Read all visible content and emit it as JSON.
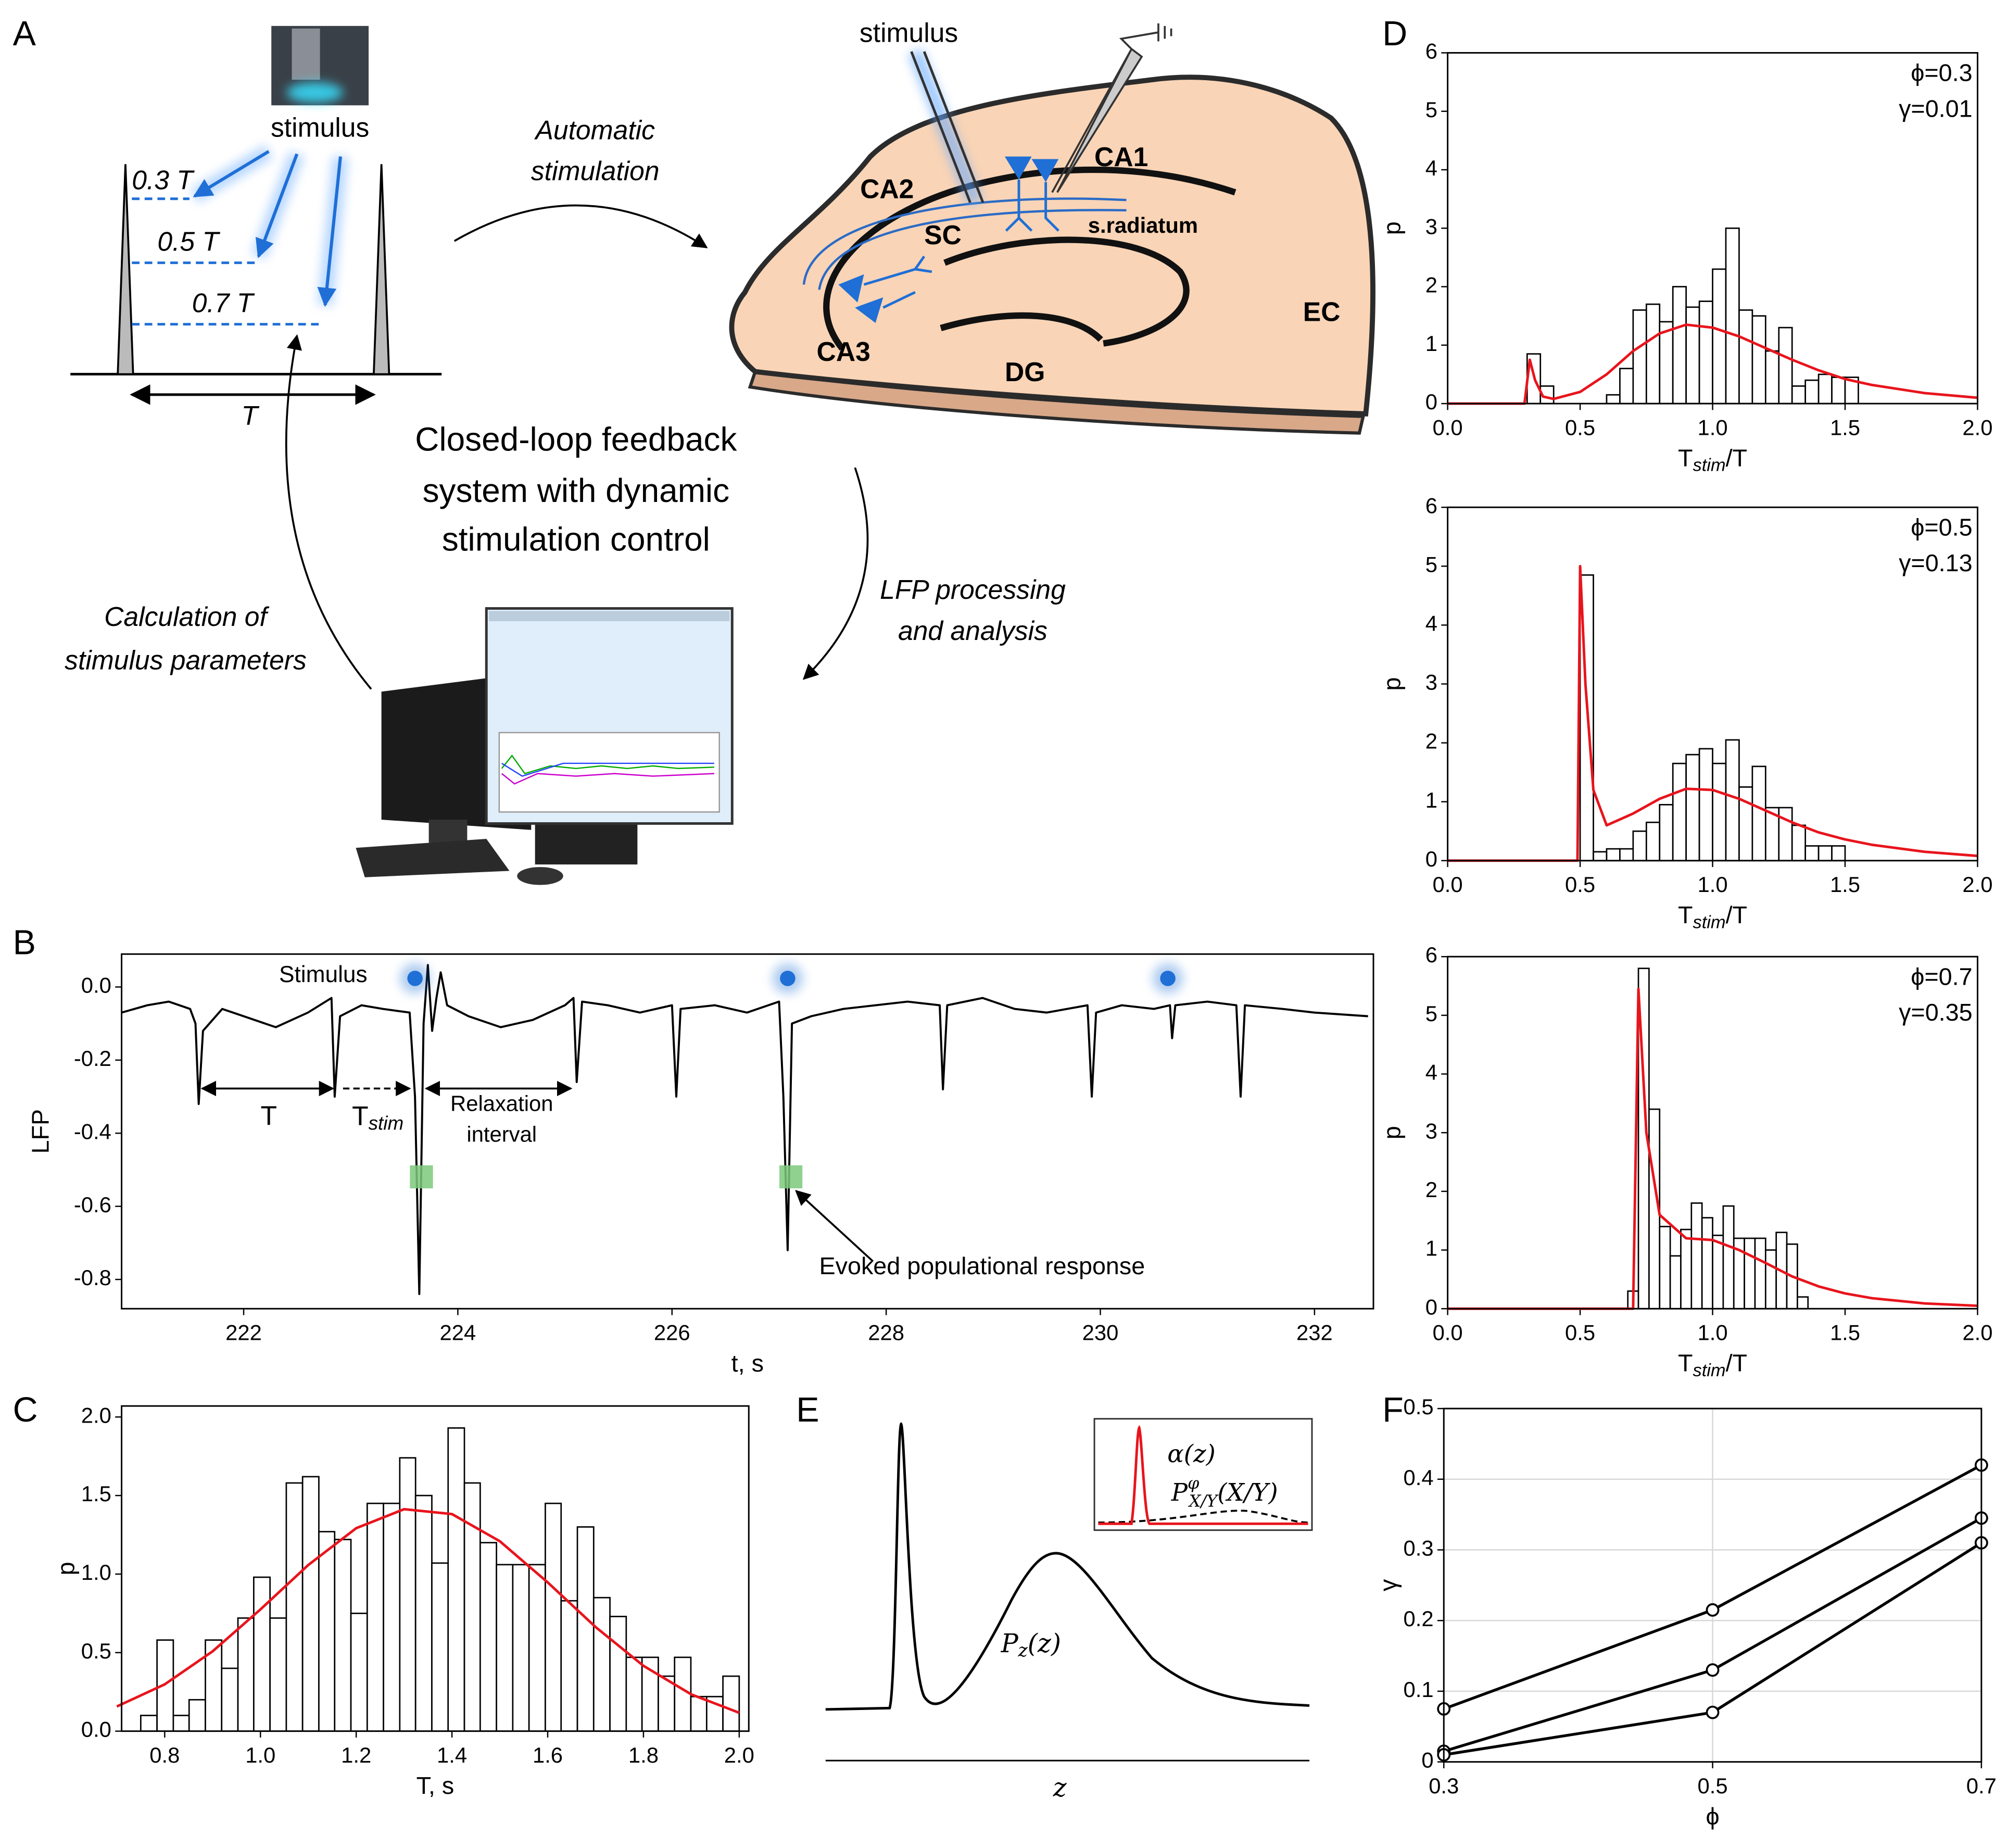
{
  "panel_labels": [
    "A",
    "B",
    "C",
    "D",
    "E",
    "F"
  ],
  "panel_a": {
    "stimulus_top": "stimulus",
    "phase_labels": [
      "0.3 T",
      "0.5 T",
      "0.7 T"
    ],
    "period": "T",
    "top_arrow": [
      "Automatic",
      "stimulation"
    ],
    "center_title": [
      "Closed-loop feedback",
      "system with dynamic",
      "stimulation control"
    ],
    "right_arrow": [
      "LFP processing",
      "and analysis"
    ],
    "left_arrow": [
      "Calculation of",
      "stimulus parameters"
    ],
    "brain": {
      "stimulus": "stimulus",
      "regions": [
        "CA1",
        "CA2",
        "CA3",
        "SC",
        "DG",
        "EC"
      ],
      "layer": "s.radiatum"
    }
  },
  "panel_e": {
    "main_curve": [
      "P",
      "z",
      "(z)"
    ],
    "inset_red": "α(z)",
    "inset_dashed": [
      "P",
      "φ",
      "X/Y",
      "(X/Y)"
    ],
    "xlabel": "z"
  },
  "chart_data": [
    {
      "type": "line",
      "xlabel": "t, s",
      "ylabel": "LFP",
      "xlim": [
        220.86,
        232.55
      ],
      "ylim": [
        -0.88,
        0.09
      ],
      "xticks": [
        222,
        224,
        226,
        228,
        230,
        232
      ],
      "yticks": [
        {
          "value": 0,
          "label": "0.0"
        },
        -0.2,
        -0.4,
        -0.6,
        -0.8
      ],
      "x": [
        220.86,
        221.1,
        221.3,
        221.5,
        221.55,
        221.58,
        221.62,
        221.8,
        222.0,
        222.3,
        222.6,
        222.82,
        222.85,
        222.9,
        223.1,
        223.3,
        223.55,
        223.6,
        223.64,
        223.68,
        223.72,
        223.76,
        223.8,
        223.84,
        223.9,
        224.1,
        224.4,
        224.7,
        225.0,
        225.08,
        225.11,
        225.16,
        225.4,
        225.7,
        226.0,
        226.04,
        226.08,
        226.4,
        226.7,
        227.0,
        227.04,
        227.08,
        227.12,
        227.3,
        227.6,
        227.9,
        228.2,
        228.5,
        228.53,
        228.57,
        228.9,
        229.2,
        229.5,
        229.88,
        229.92,
        229.96,
        230.2,
        230.5,
        230.65,
        230.67,
        230.7,
        231.0,
        231.27,
        231.31,
        231.35,
        231.7,
        232.0,
        232.5
      ],
      "series": [
        {
          "color": "#000000",
          "values": [
            -0.07,
            -0.05,
            -0.04,
            -0.06,
            -0.1,
            -0.32,
            -0.12,
            -0.06,
            -0.08,
            -0.11,
            -0.07,
            -0.03,
            -0.3,
            -0.08,
            -0.05,
            -0.06,
            -0.07,
            -0.3,
            -0.84,
            -0.1,
            0.06,
            -0.12,
            -0.03,
            0.04,
            -0.05,
            -0.08,
            -0.11,
            -0.09,
            -0.05,
            -0.03,
            -0.26,
            -0.04,
            -0.05,
            -0.07,
            -0.05,
            -0.3,
            -0.06,
            -0.05,
            -0.07,
            -0.04,
            -0.3,
            -0.72,
            -0.1,
            -0.08,
            -0.06,
            -0.05,
            -0.04,
            -0.05,
            -0.28,
            -0.05,
            -0.03,
            -0.06,
            -0.07,
            -0.05,
            -0.3,
            -0.07,
            -0.05,
            -0.06,
            -0.05,
            -0.14,
            -0.05,
            -0.04,
            -0.05,
            -0.3,
            -0.05,
            -0.06,
            -0.07,
            -0.08
          ]
        }
      ],
      "stimulus_times": [
        223.6,
        227.08,
        230.63
      ],
      "stimulus_color": "#1f6fd6",
      "evoked_times": [
        223.66,
        227.11
      ],
      "evoked_color": "#7dc97d",
      "annotations": {
        "stimulus": "Stimulus",
        "period": "T",
        "stim_interval": [
          "T",
          "stim"
        ],
        "relaxation": [
          "Relaxation",
          "interval"
        ],
        "response": "Evoked populational response"
      }
    },
    {
      "type": "histogram",
      "xlabel": "T, s",
      "ylabel": "p",
      "xlim": [
        0.71,
        2.02
      ],
      "ylim": [
        0,
        2.07
      ],
      "xticks": [
        0.8,
        {
          "value": 1,
          "label": "1.0"
        },
        1.2,
        1.4,
        1.6,
        1.8,
        {
          "value": 2,
          "label": "2.0"
        }
      ],
      "yticks": [
        {
          "value": 0,
          "label": "0.0"
        },
        0.5,
        {
          "value": 1,
          "label": "1.0"
        },
        1.5,
        {
          "value": 2,
          "label": "2.0"
        }
      ],
      "bins": [
        0.75,
        0.784,
        0.818,
        0.851,
        0.885,
        0.919,
        0.953,
        0.986,
        1.02,
        1.054,
        1.088,
        1.122,
        1.155,
        1.189,
        1.223,
        1.257,
        1.291,
        1.324,
        1.358,
        1.392,
        1.426,
        1.459,
        1.493,
        1.527,
        1.561,
        1.595,
        1.628,
        1.662,
        1.696,
        1.73,
        1.764,
        1.797,
        1.831,
        1.865,
        1.899,
        1.932,
        1.966,
        2.0
      ],
      "values": [
        0.1,
        0.58,
        0.1,
        0.2,
        0.58,
        0.4,
        0.72,
        0.98,
        0.72,
        1.58,
        1.62,
        1.27,
        1.22,
        0.75,
        1.45,
        1.45,
        1.74,
        1.5,
        1.07,
        1.93,
        1.58,
        1.2,
        1.06,
        1.06,
        1.06,
        1.45,
        0.83,
        1.3,
        0.85,
        0.73,
        0.47,
        0.47,
        0.35,
        0.47,
        0.22,
        0.22,
        0.35
      ],
      "fit": {
        "color": "#e8141c",
        "x": [
          0.7,
          0.8,
          0.9,
          1.0,
          1.1,
          1.2,
          1.3,
          1.4,
          1.5,
          1.6,
          1.7,
          1.8,
          1.9,
          2.0
        ],
        "values": [
          0.157,
          0.298,
          0.508,
          0.775,
          1.058,
          1.292,
          1.413,
          1.382,
          1.209,
          0.947,
          0.663,
          0.416,
          0.234,
          0.117
        ]
      }
    },
    {
      "type": "histogram",
      "xlabel": [
        "T",
        "stim",
        "/T"
      ],
      "ylabel": "p",
      "annotations": [
        "ϕ=0.3",
        "γ=0.01"
      ],
      "xlim": [
        0,
        2
      ],
      "ylim": [
        0,
        6
      ],
      "xticks": [
        {
          "value": 0,
          "label": "0.0"
        },
        0.5,
        {
          "value": 1,
          "label": "1.0"
        },
        1.5,
        {
          "value": 2,
          "label": "2.0"
        }
      ],
      "yticks": [
        0,
        1,
        2,
        3,
        4,
        5,
        6
      ],
      "bins": [
        0.3,
        0.35,
        0.4,
        0.45,
        0.5,
        0.55,
        0.6,
        0.65,
        0.7,
        0.75,
        0.8,
        0.85,
        0.9,
        0.95,
        1.0,
        1.05,
        1.1,
        1.15,
        1.2,
        1.25,
        1.3,
        1.35,
        1.4,
        1.45,
        1.5,
        1.55
      ],
      "values": [
        0.85,
        0.3,
        0,
        0,
        0,
        0,
        0.15,
        0.6,
        1.6,
        1.7,
        1.4,
        2.0,
        1.65,
        1.75,
        2.3,
        3.0,
        1.6,
        1.5,
        0.9,
        1.3,
        0.3,
        0.4,
        0.5,
        0.45,
        0.45
      ],
      "fit": {
        "color": "#e8141c",
        "x": [
          0,
          0.29,
          0.31,
          0.33,
          0.36,
          0.4,
          0.5,
          0.6,
          0.7,
          0.8,
          0.9,
          1.0,
          1.1,
          1.2,
          1.3,
          1.4,
          1.5,
          1.6,
          1.8,
          2.0
        ],
        "values": [
          0,
          0,
          0.75,
          0.4,
          0.12,
          0.08,
          0.2,
          0.5,
          0.9,
          1.2,
          1.35,
          1.3,
          1.15,
          0.95,
          0.75,
          0.57,
          0.42,
          0.32,
          0.18,
          0.1
        ]
      }
    },
    {
      "type": "histogram",
      "xlabel": [
        "T",
        "stim",
        "/T"
      ],
      "ylabel": "p",
      "annotations": [
        "ϕ=0.5",
        "γ=0.13"
      ],
      "xlim": [
        0,
        2
      ],
      "ylim": [
        0,
        6
      ],
      "xticks": [
        {
          "value": 0,
          "label": "0.0"
        },
        0.5,
        {
          "value": 1,
          "label": "1.0"
        },
        1.5,
        {
          "value": 2,
          "label": "2.0"
        }
      ],
      "yticks": [
        0,
        1,
        2,
        3,
        4,
        5,
        6
      ],
      "bins": [
        0.5,
        0.55,
        0.6,
        0.65,
        0.7,
        0.75,
        0.8,
        0.85,
        0.9,
        0.95,
        1.0,
        1.05,
        1.1,
        1.15,
        1.2,
        1.25,
        1.3,
        1.35,
        1.4,
        1.45,
        1.5
      ],
      "values": [
        4.85,
        0.15,
        0.2,
        0.2,
        0.5,
        0.65,
        0.95,
        1.65,
        1.8,
        1.9,
        1.65,
        2.05,
        1.25,
        1.6,
        0.9,
        0.9,
        0.6,
        0.25,
        0.25,
        0.25
      ],
      "fit": {
        "color": "#e8141c",
        "x": [
          0,
          0.49,
          0.5,
          0.52,
          0.55,
          0.6,
          0.7,
          0.8,
          0.9,
          1.0,
          1.1,
          1.2,
          1.3,
          1.4,
          1.5,
          1.6,
          1.8,
          2.0
        ],
        "values": [
          0,
          0,
          5.0,
          3.0,
          1.2,
          0.6,
          0.8,
          1.05,
          1.22,
          1.2,
          1.05,
          0.85,
          0.65,
          0.48,
          0.36,
          0.27,
          0.15,
          0.08
        ]
      }
    },
    {
      "type": "histogram",
      "xlabel": [
        "T",
        "stim",
        "/T"
      ],
      "ylabel": "p",
      "annotations": [
        "ϕ=0.7",
        "γ=0.35"
      ],
      "xlim": [
        0,
        2
      ],
      "ylim": [
        0,
        6
      ],
      "xticks": [
        {
          "value": 0,
          "label": "0.0"
        },
        0.5,
        {
          "value": 1,
          "label": "1.0"
        },
        1.5,
        {
          "value": 2,
          "label": "2.0"
        }
      ],
      "yticks": [
        0,
        1,
        2,
        3,
        4,
        5,
        6
      ],
      "bins": [
        0.68,
        0.72,
        0.76,
        0.8,
        0.84,
        0.88,
        0.92,
        0.96,
        1.0,
        1.04,
        1.08,
        1.12,
        1.16,
        1.2,
        1.24,
        1.28,
        1.32,
        1.36
      ],
      "values": [
        0.3,
        5.8,
        3.4,
        1.4,
        0.9,
        1.35,
        1.8,
        1.55,
        1.25,
        1.75,
        1.2,
        1.2,
        1.2,
        1.0,
        1.3,
        1.1,
        0.2
      ],
      "fit": {
        "color": "#e8141c",
        "x": [
          0,
          0.69,
          0.7,
          0.72,
          0.75,
          0.8,
          0.9,
          1.0,
          1.1,
          1.2,
          1.3,
          1.4,
          1.5,
          1.6,
          1.8,
          2.0
        ],
        "values": [
          0,
          0,
          0,
          5.45,
          3.0,
          1.6,
          1.2,
          1.17,
          1.0,
          0.78,
          0.55,
          0.38,
          0.26,
          0.18,
          0.09,
          0.05
        ]
      }
    },
    {
      "type": "line",
      "xlabel": "ϕ",
      "ylabel": "γ",
      "grid": true,
      "marker": "circle",
      "xlim": [
        0.3,
        0.7
      ],
      "ylim": [
        0,
        0.5
      ],
      "xticks": [
        0.3,
        0.5,
        0.7
      ],
      "yticks": [
        0,
        0.1,
        0.2,
        0.3,
        0.4,
        0.5
      ],
      "x": [
        0.3,
        0.5,
        0.7
      ],
      "series": [
        {
          "color": "#000000",
          "values": [
            0.075,
            0.215,
            0.42
          ]
        },
        {
          "color": "#000000",
          "values": [
            0.015,
            0.13,
            0.345
          ]
        },
        {
          "color": "#000000",
          "values": [
            0.01,
            0.07,
            0.31
          ]
        }
      ]
    }
  ]
}
